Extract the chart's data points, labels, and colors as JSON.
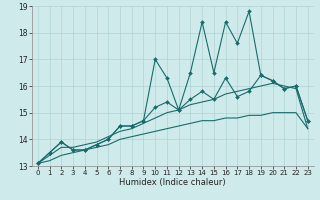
{
  "xlabel": "Humidex (Indice chaleur)",
  "bg_color": "#ceeaea",
  "grid_color": "#afd4d4",
  "line_color": "#1a6b6b",
  "x": [
    0,
    1,
    2,
    3,
    4,
    5,
    6,
    7,
    8,
    9,
    10,
    11,
    12,
    13,
    14,
    15,
    16,
    17,
    18,
    19,
    20,
    21,
    22,
    23
  ],
  "line1": [
    13.1,
    13.5,
    13.9,
    13.6,
    13.6,
    13.8,
    14.0,
    14.5,
    14.5,
    14.7,
    17.0,
    16.3,
    15.1,
    16.5,
    18.4,
    16.5,
    18.4,
    17.6,
    18.8,
    16.4,
    16.2,
    15.9,
    16.0,
    14.7
  ],
  "line2": [
    13.1,
    13.5,
    13.9,
    13.6,
    13.6,
    13.8,
    14.0,
    14.5,
    14.5,
    14.7,
    15.2,
    15.4,
    15.1,
    15.5,
    15.8,
    15.5,
    16.3,
    15.6,
    15.8,
    16.4,
    16.2,
    15.9,
    16.0,
    14.7
  ],
  "line3": [
    13.1,
    13.4,
    13.7,
    13.7,
    13.8,
    13.9,
    14.1,
    14.3,
    14.4,
    14.6,
    14.8,
    15.0,
    15.1,
    15.3,
    15.4,
    15.5,
    15.7,
    15.8,
    15.9,
    16.0,
    16.1,
    16.0,
    15.9,
    14.4
  ],
  "line4": [
    13.1,
    13.2,
    13.4,
    13.5,
    13.6,
    13.7,
    13.8,
    14.0,
    14.1,
    14.2,
    14.3,
    14.4,
    14.5,
    14.6,
    14.7,
    14.7,
    14.8,
    14.8,
    14.9,
    14.9,
    15.0,
    15.0,
    15.0,
    14.4
  ],
  "ylim": [
    13,
    19
  ],
  "xlim": [
    -0.5,
    23.5
  ],
  "yticks": [
    13,
    14,
    15,
    16,
    17,
    18,
    19
  ],
  "xticks": [
    0,
    1,
    2,
    3,
    4,
    5,
    6,
    7,
    8,
    9,
    10,
    11,
    12,
    13,
    14,
    15,
    16,
    17,
    18,
    19,
    20,
    21,
    22,
    23
  ]
}
